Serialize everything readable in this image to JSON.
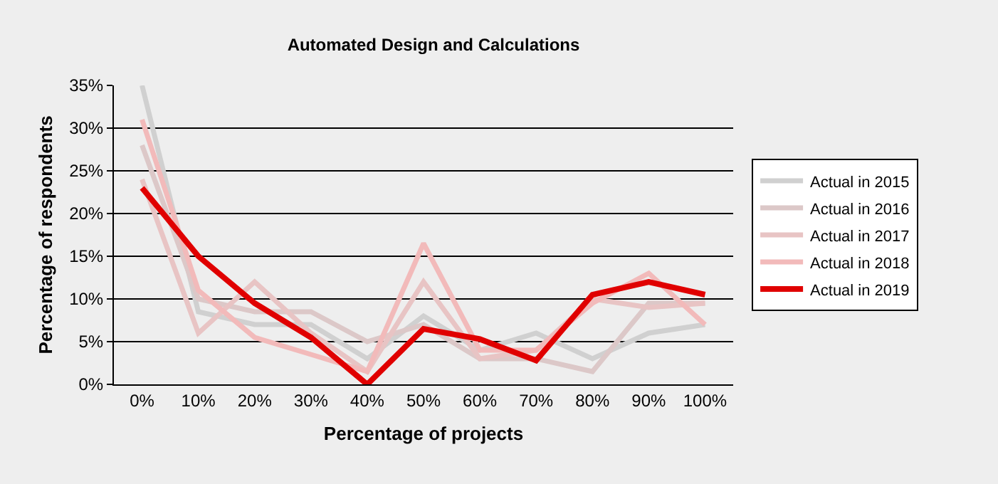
{
  "chart_data": {
    "type": "line",
    "title": "Automated Design and Calculations",
    "xlabel": "Percentage of projects",
    "ylabel": "Percentage of respondents",
    "categories": [
      "0%",
      "10%",
      "20%",
      "30%",
      "40%",
      "50%",
      "60%",
      "70%",
      "80%",
      "90%",
      "100%"
    ],
    "series": [
      {
        "name": "Actual in 2015",
        "color": "#d0d0d0",
        "values": [
          35,
          8.5,
          7,
          7,
          3,
          8,
          4,
          6,
          3,
          6,
          7
        ]
      },
      {
        "name": "Actual in 2016",
        "color": "#dcc8c8",
        "values": [
          28,
          10,
          8.5,
          8.5,
          5,
          7,
          3,
          3,
          1.5,
          9.5,
          9.5
        ]
      },
      {
        "name": "Actual in 2017",
        "color": "#e8c4c4",
        "values": [
          24,
          6,
          12,
          6,
          1.5,
          12,
          3,
          4,
          10,
          9,
          9.5
        ]
      },
      {
        "name": "Actual in 2018",
        "color": "#f2baba",
        "values": [
          31,
          11,
          5.5,
          3.5,
          1.5,
          16.5,
          4,
          4,
          9.5,
          13,
          7
        ]
      },
      {
        "name": "Actual in 2019",
        "color": "#e00000",
        "values": [
          23,
          15,
          9.5,
          5.5,
          0,
          6.5,
          5.3,
          2.8,
          10.5,
          12,
          10.5
        ]
      }
    ],
    "ylim": [
      0,
      35
    ],
    "yticks": [
      {
        "value": 0,
        "label": "0%"
      },
      {
        "value": 5,
        "label": "5%"
      },
      {
        "value": 10,
        "label": "10%"
      },
      {
        "value": 15,
        "label": "15%"
      },
      {
        "value": 20,
        "label": "20%"
      },
      {
        "value": 25,
        "label": "25%"
      },
      {
        "value": 30,
        "label": "30%"
      },
      {
        "value": 35,
        "label": "35%"
      }
    ],
    "grid": "y",
    "legend": "right",
    "marker": "none",
    "line_style": "solid"
  }
}
